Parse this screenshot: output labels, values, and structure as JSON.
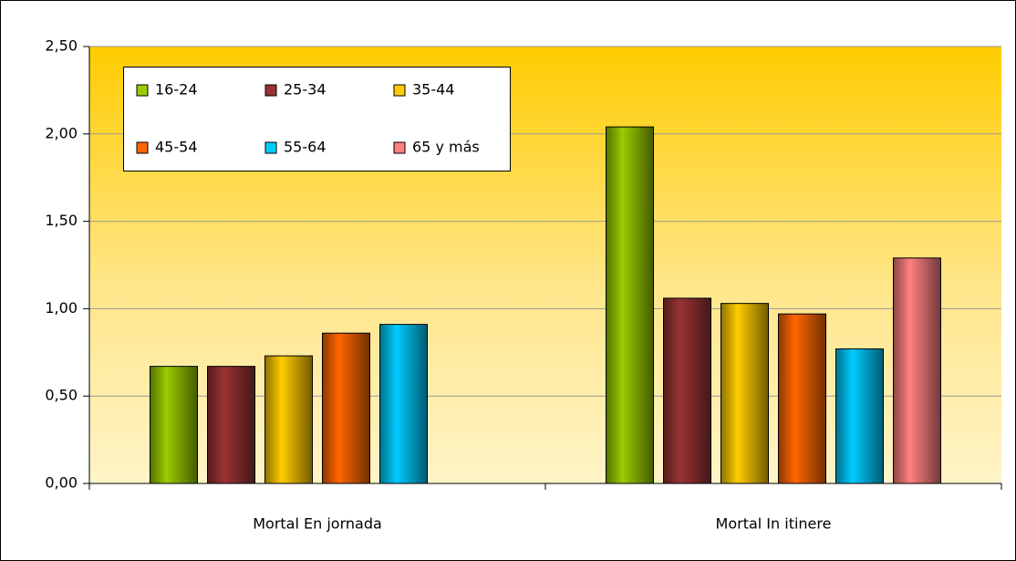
{
  "chart_data": {
    "type": "bar",
    "categories": [
      "Mortal En jornada",
      "Mortal In itinere"
    ],
    "series": [
      {
        "name": "16-24",
        "color": "#99cc00",
        "values": [
          0.67,
          2.04
        ]
      },
      {
        "name": "25-34",
        "color": "#993333",
        "values": [
          0.67,
          1.06
        ]
      },
      {
        "name": "35-44",
        "color": "#ffcc00",
        "values": [
          0.73,
          1.03
        ]
      },
      {
        "name": "45-54",
        "color": "#ff6600",
        "values": [
          0.86,
          0.97
        ]
      },
      {
        "name": "55-64",
        "color": "#00ccff",
        "values": [
          0.91,
          0.77
        ]
      },
      {
        "name": "65 y más",
        "color": "#ff8080",
        "values": [
          null,
          1.29
        ]
      }
    ],
    "ylim": [
      0,
      2.5
    ],
    "yticks": [
      {
        "value": 0,
        "label": "0,00"
      },
      {
        "value": 0.5,
        "label": "0,50"
      },
      {
        "value": 1,
        "label": "1,00"
      },
      {
        "value": 1.5,
        "label": "1,50"
      },
      {
        "value": 2,
        "label": "2,00"
      },
      {
        "value": 2.5,
        "label": "2,50"
      }
    ],
    "grid": true
  }
}
